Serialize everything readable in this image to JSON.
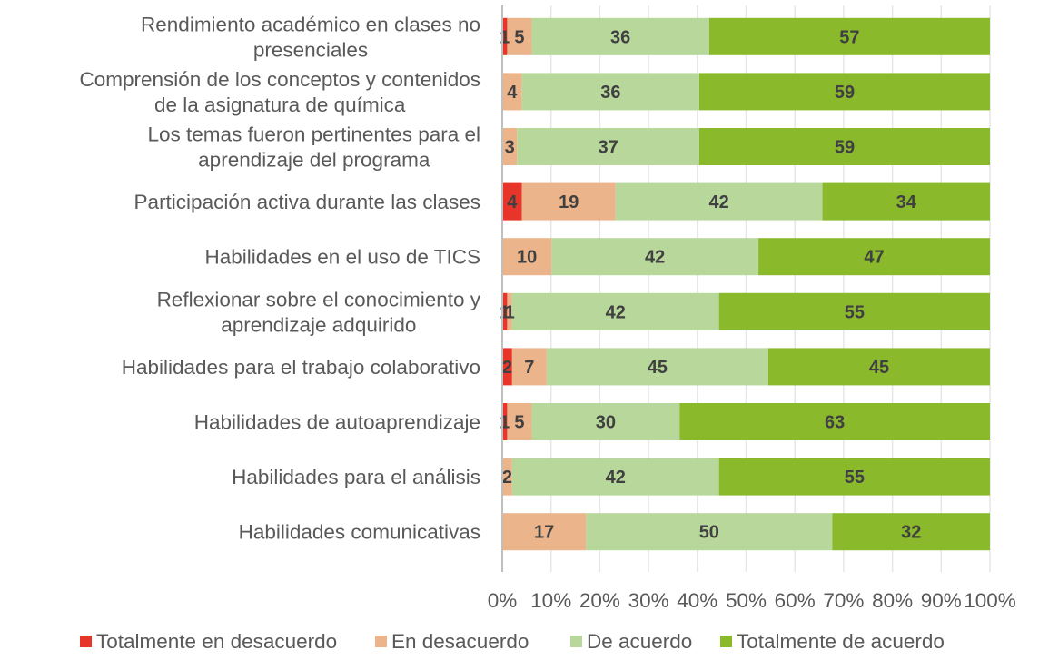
{
  "chart_data": {
    "type": "bar",
    "orientation": "horizontal",
    "stacking": "percent",
    "title": "",
    "xlabel": "",
    "ylabel": "",
    "xlim": [
      0,
      100
    ],
    "grid": true,
    "legend_position": "bottom",
    "categories": [
      "Rendimiento académico en clases no presenciales",
      "Comprensión de los conceptos y contenidos de la asignatura de química",
      "Los temas  fueron pertinentes para el aprendizaje del programa",
      "Participación activa durante las clases",
      "Habilidades en el uso de TICS",
      "Reflexionar sobre el conocimiento y aprendizaje adquirido",
      "Habilidades para el trabajo colaborativo",
      "Habilidades de autoaprendizaje",
      "Habilidades para el análisis",
      "Habilidades comunicativas"
    ],
    "category_lines": [
      [
        "Rendimiento académico en clases no",
        "presenciales"
      ],
      [
        "Comprensión de los conceptos y contenidos",
        "de la asignatura de química"
      ],
      [
        "Los temas  fueron pertinentes para el",
        "aprendizaje del programa"
      ],
      [
        "Participación activa durante las clases"
      ],
      [
        "Habilidades en el uso de TICS"
      ],
      [
        "Reflexionar sobre el conocimiento y",
        "aprendizaje adquirido"
      ],
      [
        "Habilidades para el trabajo colaborativo"
      ],
      [
        "Habilidades de autoaprendizaje"
      ],
      [
        "Habilidades para el análisis"
      ],
      [
        "Habilidades comunicativas"
      ]
    ],
    "series": [
      {
        "name": "Totalmente en desacuerdo",
        "color": "#e8352a",
        "values": [
          1,
          0,
          0,
          4,
          0,
          1,
          2,
          1,
          0,
          0
        ]
      },
      {
        "name": "En desacuerdo",
        "color": "#ebb48a",
        "values": [
          5,
          4,
          3,
          19,
          10,
          1,
          7,
          5,
          2,
          17
        ]
      },
      {
        "name": "De acuerdo",
        "color": "#b7d79b",
        "values": [
          36,
          36,
          37,
          42,
          42,
          42,
          45,
          30,
          42,
          50
        ]
      },
      {
        "name": "Totalmente de acuerdo",
        "color": "#8aba2c",
        "values": [
          57,
          59,
          59,
          34,
          47,
          55,
          45,
          63,
          55,
          32
        ]
      }
    ],
    "x_ticks": [
      "0%",
      "10%",
      "20%",
      "30%",
      "40%",
      "50%",
      "60%",
      "70%",
      "80%",
      "90%",
      "100%"
    ]
  }
}
